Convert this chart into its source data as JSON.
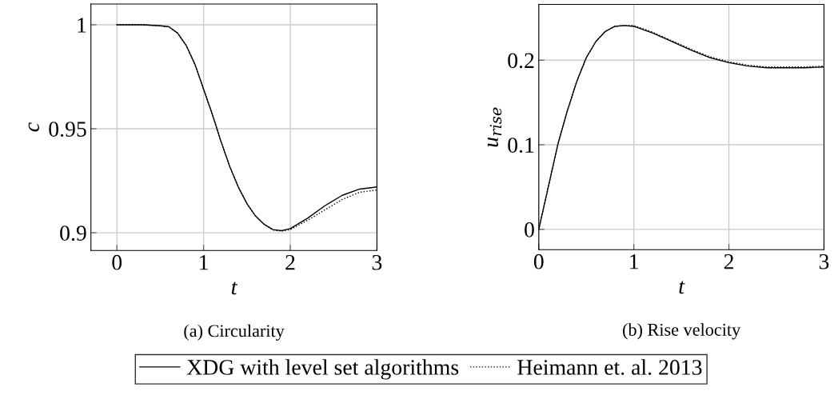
{
  "chart_data": [
    {
      "type": "line",
      "xlabel": "t",
      "ylabel": "c",
      "annotations": [
        "(a) Circularity"
      ],
      "xlim": [
        -0.3,
        3
      ],
      "ylim": [
        0.8915,
        1.01
      ],
      "xticks": [
        0,
        1,
        2,
        3
      ],
      "yticks": [
        0.9,
        0.95,
        1
      ],
      "grid": true,
      "legend": "bottom",
      "series": [
        {
          "name": "XDG with level set algorithms",
          "color": "#000000",
          "line_style": "solid",
          "x": [
            0,
            0.3,
            0.5,
            0.6,
            0.7,
            0.8,
            0.9,
            1.0,
            1.1,
            1.2,
            1.3,
            1.4,
            1.5,
            1.6,
            1.7,
            1.8,
            1.9,
            2.0,
            2.2,
            2.4,
            2.6,
            2.8,
            3.0
          ],
          "values": [
            1,
            1,
            0.9995,
            0.999,
            0.996,
            0.99,
            0.981,
            0.969,
            0.957,
            0.944,
            0.932,
            0.922,
            0.914,
            0.908,
            0.904,
            0.9015,
            0.901,
            0.902,
            0.907,
            0.913,
            0.918,
            0.921,
            0.922
          ]
        },
        {
          "name": "Heimann et. al. 2013",
          "color": "#000000",
          "line_style": "dotted",
          "x": [
            0,
            0.3,
            0.5,
            0.6,
            0.7,
            0.8,
            0.9,
            1.0,
            1.1,
            1.2,
            1.3,
            1.4,
            1.5,
            1.6,
            1.7,
            1.8,
            1.9,
            2.0,
            2.2,
            2.4,
            2.6,
            2.8,
            3.0
          ],
          "values": [
            1,
            1,
            0.9995,
            0.999,
            0.996,
            0.99,
            0.981,
            0.969,
            0.957,
            0.944,
            0.932,
            0.922,
            0.914,
            0.908,
            0.904,
            0.9013,
            0.9008,
            0.9015,
            0.906,
            0.911,
            0.916,
            0.9195,
            0.9205
          ]
        }
      ]
    },
    {
      "type": "line",
      "xlabel": "t",
      "ylabel": "u$_{rise}$",
      "annotations": [
        "(b) Rise velocity"
      ],
      "xlim": [
        0,
        3
      ],
      "ylim": [
        -0.024,
        0.266
      ],
      "xticks": [
        0,
        1,
        2,
        3
      ],
      "yticks": [
        0,
        0.1,
        0.2
      ],
      "grid": true,
      "series": [
        {
          "color": "#000000",
          "line_style": "solid",
          "x": [
            0,
            0.1,
            0.2,
            0.3,
            0.4,
            0.5,
            0.6,
            0.7,
            0.8,
            0.9,
            1.0,
            1.2,
            1.4,
            1.6,
            1.8,
            2.0,
            2.2,
            2.4,
            2.6,
            2.8,
            3.0
          ],
          "values": [
            0,
            0.05,
            0.1,
            0.14,
            0.175,
            0.203,
            0.222,
            0.234,
            0.24,
            0.241,
            0.24,
            0.232,
            0.222,
            0.212,
            0.203,
            0.197,
            0.193,
            0.191,
            0.191,
            0.191,
            0.192
          ]
        },
        {
          "color": "#000000",
          "line_style": "dotted",
          "x": [
            0,
            0.1,
            0.2,
            0.3,
            0.4,
            0.5,
            0.6,
            0.7,
            0.8,
            0.9,
            1.0,
            1.2,
            1.4,
            1.6,
            1.8,
            2.0,
            2.2,
            2.4,
            2.6,
            2.8,
            3.0
          ],
          "values": [
            0,
            0.05,
            0.1,
            0.14,
            0.175,
            0.203,
            0.222,
            0.234,
            0.24,
            0.241,
            0.241,
            0.233,
            0.223,
            0.213,
            0.204,
            0.198,
            0.194,
            0.192,
            0.192,
            0.192,
            0.193
          ]
        }
      ]
    }
  ]
}
